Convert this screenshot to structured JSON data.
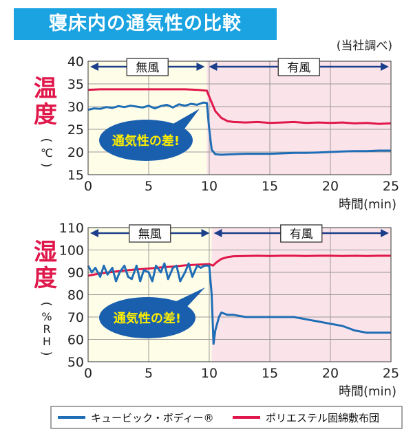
{
  "title": "寝床内の通気性の比較",
  "source_note": "(当社調べ)",
  "colors": {
    "blue": "#1f6db5",
    "red": "#e0174a",
    "no_wind_bg": "#fefde8",
    "wind_bg": "#fbe3ea",
    "banner": "#1aa3e0",
    "bubble": "#1a5fae",
    "bubble_text": "#ffee00",
    "ylabel": "#e0174a"
  },
  "legend": [
    {
      "name": "キュービック・ボディー®",
      "color": "#1f6db5"
    },
    {
      "name": "ポリエステル固綿敷布団",
      "color": "#e0174a"
    }
  ],
  "chart_data": [
    {
      "type": "line",
      "title": "",
      "ylabel_main": "温度",
      "ylabel_unit": "(℃)",
      "xlabel": "時間(min)",
      "xlim": [
        0,
        25
      ],
      "ylim": [
        15,
        40
      ],
      "xticks": [
        0,
        5,
        10,
        15,
        20,
        25
      ],
      "yticks": [
        15,
        20,
        25,
        30,
        35,
        40
      ],
      "grid": true,
      "regions": [
        {
          "label": "無風",
          "from": 0,
          "to": 9.8
        },
        {
          "label": "有風",
          "from": 9.8,
          "to": 25
        }
      ],
      "annotation": "通気性の差!",
      "series": [
        {
          "name": "キュービック・ボディー®",
          "color": "#1f6db5",
          "x": [
            0,
            0.5,
            1,
            1.5,
            2,
            2.5,
            3,
            3.5,
            4,
            4.5,
            5,
            5.5,
            6,
            6.5,
            7,
            7.5,
            8,
            8.5,
            9,
            9.5,
            9.8,
            10.0,
            10.2,
            10.5,
            11,
            12,
            13,
            14,
            15,
            16,
            17,
            18,
            19,
            20,
            21,
            22,
            23,
            24,
            25
          ],
          "y": [
            29.3,
            29.6,
            29.5,
            29.9,
            29.7,
            30.1,
            29.9,
            30.2,
            30.0,
            29.8,
            30.2,
            29.6,
            30.1,
            30.4,
            29.8,
            30.5,
            30.2,
            30.6,
            30.4,
            30.9,
            30.8,
            25.0,
            20.5,
            19.5,
            19.4,
            19.5,
            19.6,
            19.6,
            19.6,
            19.7,
            19.8,
            19.8,
            19.9,
            20.0,
            20.1,
            20.2,
            20.2,
            20.3,
            20.3
          ]
        },
        {
          "name": "ポリエステル固綿敷布団",
          "color": "#e0174a",
          "x": [
            0,
            1,
            2,
            3,
            4,
            5,
            6,
            7,
            8,
            9,
            9.8,
            10.1,
            10.5,
            11,
            11.5,
            12,
            13,
            14,
            15,
            16,
            17,
            18,
            19,
            20,
            21,
            22,
            23,
            24,
            25
          ],
          "y": [
            33.7,
            33.8,
            33.8,
            33.8,
            33.8,
            33.8,
            33.8,
            33.8,
            33.8,
            33.7,
            33.5,
            31.5,
            29.0,
            27.5,
            26.8,
            26.6,
            26.5,
            26.6,
            26.4,
            26.5,
            26.6,
            26.4,
            26.5,
            26.4,
            26.5,
            26.3,
            26.4,
            26.2,
            26.3
          ]
        }
      ]
    },
    {
      "type": "line",
      "title": "",
      "ylabel_main": "湿度",
      "ylabel_unit": "(%RH)",
      "xlabel": "時間(min)",
      "xlim": [
        0,
        25
      ],
      "ylim": [
        50,
        110
      ],
      "xticks": [
        0,
        5,
        10,
        15,
        20,
        25
      ],
      "yticks": [
        50,
        60,
        70,
        80,
        90,
        100,
        110
      ],
      "grid": true,
      "regions": [
        {
          "label": "無風",
          "from": 0,
          "to": 10.2
        },
        {
          "label": "有風",
          "from": 10.2,
          "to": 25
        }
      ],
      "annotation": "通気性の差!",
      "series": [
        {
          "name": "キュービック・ボディー®",
          "color": "#1f6db5",
          "x": [
            0,
            0.3,
            0.6,
            1,
            1.3,
            1.6,
            2,
            2.3,
            2.6,
            3,
            3.3,
            3.6,
            4,
            4.3,
            4.6,
            5,
            5.3,
            5.6,
            6,
            6.3,
            6.6,
            7,
            7.3,
            7.6,
            8,
            8.3,
            8.6,
            9,
            9.3,
            9.6,
            10,
            10.2,
            10.35,
            10.5,
            10.8,
            11,
            11.5,
            12,
            13,
            14,
            15,
            16,
            17,
            18,
            19,
            20,
            21,
            22,
            23,
            24,
            25
          ],
          "y": [
            93,
            90,
            92,
            88,
            93,
            89,
            92,
            86,
            90,
            93,
            88,
            87,
            93,
            86,
            91,
            90,
            86,
            93,
            90,
            94,
            87,
            92,
            93,
            86,
            90,
            94,
            88,
            93,
            92,
            93,
            93,
            80,
            58,
            64,
            70,
            72,
            71,
            71,
            70,
            70,
            70,
            70,
            70,
            69,
            68,
            67,
            66,
            64,
            63,
            63,
            63
          ]
        },
        {
          "name": "ポリエステル固綿敷布団",
          "color": "#e0174a",
          "x": [
            0,
            1,
            2,
            3,
            4,
            5,
            6,
            7,
            8,
            9,
            10,
            10.3,
            10.6,
            11,
            11.5,
            12,
            13,
            14,
            15,
            16,
            17,
            18,
            19,
            20,
            21,
            22,
            23,
            24,
            25
          ],
          "y": [
            88.5,
            89.5,
            90.2,
            90.8,
            91.3,
            91.7,
            92.2,
            92.6,
            93.1,
            93.4,
            93.7,
            93.0,
            94.5,
            96.0,
            96.8,
            97.2,
            97.3,
            97.4,
            97.3,
            97.4,
            97.4,
            97.3,
            97.4,
            97.4,
            97.3,
            97.4,
            97.3,
            97.4,
            97.4
          ]
        }
      ]
    }
  ]
}
